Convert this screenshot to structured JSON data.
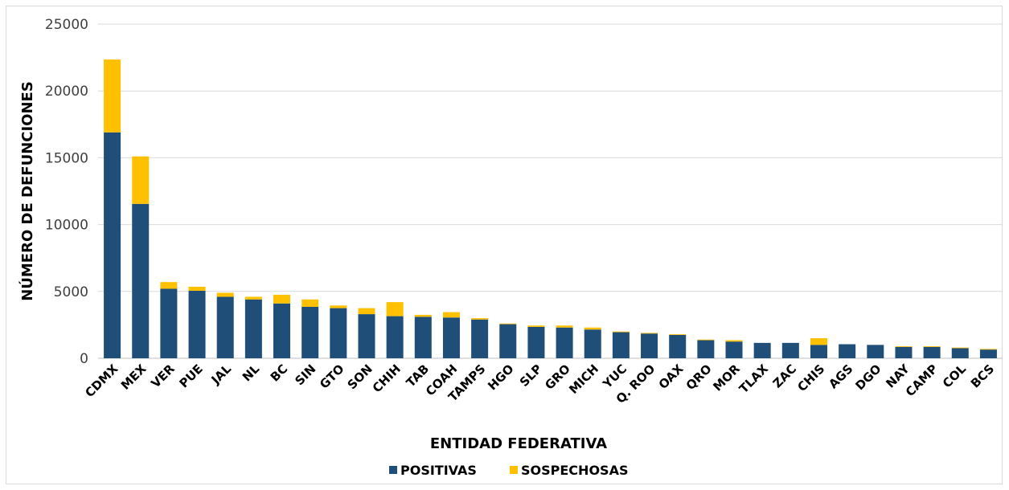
{
  "chart_data": {
    "type": "bar",
    "stacked": true,
    "title": "",
    "xlabel": "ENTIDAD FEDERATIVA",
    "ylabel": "NÚMERO DE DEFUNCIONES",
    "ylim": [
      0,
      25000
    ],
    "yticks": [
      0,
      5000,
      10000,
      15000,
      20000,
      25000
    ],
    "grid": true,
    "legend_position": "bottom",
    "categories": [
      "CDMX",
      "MEX",
      "VER",
      "PUE",
      "JAL",
      "NL",
      "BC",
      "SIN",
      "GTO",
      "SON",
      "CHIH",
      "TAB",
      "COAH",
      "TAMPS",
      "HGO",
      "SLP",
      "GRO",
      "MICH",
      "YUC",
      "Q. ROO",
      "OAX",
      "QRO",
      "MOR",
      "TLAX",
      "ZAC",
      "CHIS",
      "AGS",
      "DGO",
      "NAY",
      "CAMP",
      "COL",
      "BCS"
    ],
    "series": [
      {
        "name": "POSITIVAS",
        "color": "#1f4e79",
        "values": [
          16900,
          11550,
          5200,
          5050,
          4600,
          4400,
          4100,
          3850,
          3750,
          3300,
          3150,
          3100,
          3050,
          2900,
          2550,
          2350,
          2300,
          2150,
          1950,
          1850,
          1750,
          1350,
          1250,
          1150,
          1150,
          1000,
          1050,
          1000,
          850,
          850,
          750,
          650
        ]
      },
      {
        "name": "SOSPECHOSAS",
        "color": "#ffc000",
        "values": [
          5450,
          3550,
          500,
          300,
          300,
          200,
          650,
          550,
          200,
          450,
          1050,
          150,
          400,
          100,
          50,
          100,
          150,
          150,
          50,
          50,
          50,
          50,
          100,
          0,
          0,
          500,
          0,
          0,
          50,
          50,
          50,
          50
        ]
      }
    ]
  }
}
